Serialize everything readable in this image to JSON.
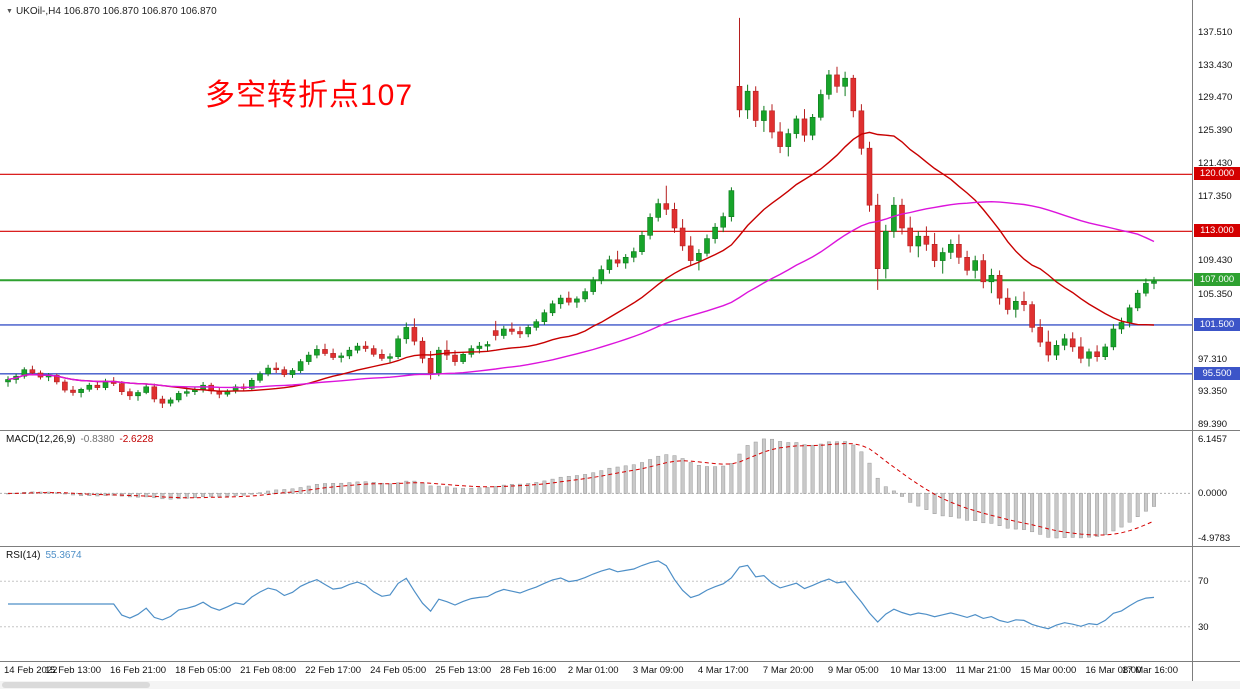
{
  "window": {
    "symbol_label": "UKOil-,H4 106.870 106.870 106.870 106.870"
  },
  "main_chart": {
    "annotation": {
      "text": "多空转折点107",
      "color": "#ff0000"
    },
    "y_ticks": [
      "137.510",
      "133.430",
      "129.470",
      "125.390",
      "121.430",
      "117.350",
      "113.390",
      "109.430",
      "105.350",
      "101.390",
      "97.310",
      "93.350",
      "89.390"
    ],
    "ylim": [
      88.6,
      141.4
    ],
    "hlines": [
      {
        "price": 120.0,
        "label": "120.000",
        "color": "#d40000",
        "width": 1.2
      },
      {
        "price": 113.0,
        "label": "113.000",
        "color": "#d40000",
        "width": 1.2
      },
      {
        "price": 107.0,
        "label": "107.000",
        "color": "#2ea130",
        "width": 2
      },
      {
        "price": 101.5,
        "label": "101.500",
        "color": "#3c55c8",
        "width": 1.4
      },
      {
        "price": 95.5,
        "label": "95.500",
        "color": "#3c55c8",
        "width": 1.4
      }
    ],
    "colors": {
      "up": "#17a42a",
      "up_stroke": "#0d7a1c",
      "down": "#e03030",
      "down_stroke": "#b51f1f",
      "ma_fast": "#c80000",
      "ma_slow": "#dc14dc"
    },
    "ma_fast_period": 20,
    "ma_slow_period": 50
  },
  "macd_panel": {
    "label": "MACD(12,26,9)",
    "value_main": "-0.8380",
    "value_signal": "-2.6228",
    "axis_ticks": [
      "6.1457",
      "0.0000",
      "-4.9783"
    ],
    "fast": 12,
    "slow": 26,
    "signal": 9,
    "colors": {
      "histogram": "#c9c9c9",
      "histogram_stroke": "#9a9a9a",
      "signal": "#d40000",
      "zero": "#b0b0b0"
    }
  },
  "rsi_panel": {
    "label": "RSI(14)",
    "value": "55.3674",
    "period": 14,
    "levels": [
      70,
      30
    ],
    "axis_ticks": [
      "70",
      "30"
    ],
    "colors": {
      "line": "#4e8fc7",
      "level": "#c6c6c6"
    }
  },
  "time_axis": {
    "labels": [
      "14 Feb 2022",
      "15 Feb 13:00",
      "16 Feb 21:00",
      "18 Feb 05:00",
      "21 Feb 08:00",
      "22 Feb 17:00",
      "24 Feb 05:00",
      "25 Feb 13:00",
      "28 Feb 16:00",
      "2 Mar 01:00",
      "3 Mar 09:00",
      "4 Mar 17:00",
      "7 Mar 20:00",
      "9 Mar 05:00",
      "10 Mar 13:00",
      "11 Mar 21:00",
      "15 Mar 00:00",
      "16 Mar 08:00",
      "17 Mar 16:00"
    ]
  },
  "chart_data": {
    "type": "candlestick",
    "symbol": "UKOil-",
    "timeframe": "H4",
    "ohlc_format": [
      "open",
      "high",
      "low",
      "close"
    ],
    "candles": [
      [
        94.5,
        95.2,
        93.9,
        94.8
      ],
      [
        94.8,
        95.5,
        94.3,
        95.2
      ],
      [
        95.2,
        96.3,
        94.9,
        96.0
      ],
      [
        96.0,
        96.5,
        95.3,
        95.6
      ],
      [
        95.6,
        95.9,
        94.8,
        95.1
      ],
      [
        95.1,
        95.6,
        94.6,
        95.3
      ],
      [
        95.3,
        95.5,
        94.2,
        94.5
      ],
      [
        94.5,
        94.8,
        93.2,
        93.5
      ],
      [
        93.5,
        94.0,
        92.8,
        93.2
      ],
      [
        93.2,
        93.8,
        92.6,
        93.6
      ],
      [
        93.6,
        94.4,
        93.3,
        94.1
      ],
      [
        94.1,
        94.6,
        93.5,
        93.8
      ],
      [
        93.8,
        94.9,
        93.5,
        94.6
      ],
      [
        94.6,
        95.1,
        94.0,
        94.3
      ],
      [
        94.3,
        94.6,
        92.9,
        93.3
      ],
      [
        93.3,
        93.7,
        92.3,
        92.8
      ],
      [
        92.8,
        93.5,
        92.2,
        93.2
      ],
      [
        93.2,
        94.2,
        93.0,
        93.9
      ],
      [
        93.9,
        94.3,
        92.0,
        92.4
      ],
      [
        92.4,
        92.8,
        91.3,
        91.9
      ],
      [
        91.9,
        92.6,
        91.5,
        92.3
      ],
      [
        92.3,
        93.4,
        92.0,
        93.1
      ],
      [
        93.1,
        93.8,
        92.7,
        93.3
      ],
      [
        93.3,
        93.9,
        92.9,
        93.6
      ],
      [
        93.6,
        94.5,
        93.2,
        94.1
      ],
      [
        94.1,
        94.4,
        93.0,
        93.4
      ],
      [
        93.4,
        93.8,
        92.5,
        93.0
      ],
      [
        93.0,
        93.6,
        92.7,
        93.4
      ],
      [
        93.4,
        94.2,
        93.1,
        93.9
      ],
      [
        93.9,
        94.3,
        93.4,
        93.7
      ],
      [
        93.7,
        95.0,
        93.5,
        94.7
      ],
      [
        94.7,
        95.8,
        94.4,
        95.5
      ],
      [
        95.5,
        96.6,
        95.2,
        96.2
      ],
      [
        96.2,
        96.9,
        95.6,
        96.0
      ],
      [
        96.0,
        96.4,
        95.1,
        95.4
      ],
      [
        95.4,
        96.2,
        95.0,
        95.9
      ],
      [
        95.9,
        97.3,
        95.6,
        97.0
      ],
      [
        97.0,
        98.2,
        96.6,
        97.8
      ],
      [
        97.8,
        99.0,
        97.4,
        98.5
      ],
      [
        98.5,
        99.2,
        97.7,
        98.0
      ],
      [
        98.0,
        98.6,
        97.2,
        97.5
      ],
      [
        97.5,
        98.1,
        96.9,
        97.7
      ],
      [
        97.7,
        98.8,
        97.3,
        98.4
      ],
      [
        98.4,
        99.3,
        98.0,
        98.9
      ],
      [
        98.9,
        99.5,
        98.2,
        98.6
      ],
      [
        98.6,
        99.0,
        97.6,
        97.9
      ],
      [
        97.9,
        98.5,
        97.1,
        97.4
      ],
      [
        97.4,
        98.0,
        96.8,
        97.6
      ],
      [
        97.6,
        100.2,
        97.3,
        99.8
      ],
      [
        99.8,
        101.8,
        99.2,
        101.2
      ],
      [
        101.2,
        102.3,
        99.0,
        99.5
      ],
      [
        99.5,
        100.0,
        96.8,
        97.4
      ],
      [
        97.4,
        98.3,
        94.8,
        95.6
      ],
      [
        95.6,
        98.8,
        95.2,
        98.4
      ],
      [
        98.4,
        99.6,
        97.2,
        97.8
      ],
      [
        97.8,
        98.4,
        96.5,
        97.0
      ],
      [
        97.0,
        98.2,
        96.7,
        97.9
      ],
      [
        97.9,
        99.0,
        97.5,
        98.6
      ],
      [
        98.6,
        99.4,
        98.0,
        98.9
      ],
      [
        98.9,
        99.5,
        98.3,
        99.1
      ],
      [
        100.8,
        102.0,
        99.6,
        100.2
      ],
      [
        100.2,
        101.4,
        99.8,
        101.0
      ],
      [
        101.0,
        101.8,
        100.3,
        100.7
      ],
      [
        100.7,
        101.3,
        99.9,
        100.4
      ],
      [
        100.4,
        101.5,
        100.0,
        101.2
      ],
      [
        101.2,
        102.2,
        100.8,
        101.9
      ],
      [
        101.9,
        103.4,
        101.5,
        103.0
      ],
      [
        103.0,
        104.5,
        102.6,
        104.1
      ],
      [
        104.1,
        105.2,
        103.5,
        104.8
      ],
      [
        104.8,
        105.6,
        103.9,
        104.3
      ],
      [
        104.3,
        105.0,
        103.6,
        104.7
      ],
      [
        104.7,
        106.0,
        104.3,
        105.6
      ],
      [
        105.6,
        107.4,
        105.2,
        107.0
      ],
      [
        107.0,
        108.8,
        106.5,
        108.3
      ],
      [
        108.3,
        110.0,
        107.8,
        109.5
      ],
      [
        109.5,
        110.6,
        108.6,
        109.1
      ],
      [
        109.1,
        110.2,
        108.4,
        109.8
      ],
      [
        109.8,
        111.0,
        109.2,
        110.5
      ],
      [
        110.5,
        113.0,
        110.1,
        112.5
      ],
      [
        112.5,
        115.2,
        112.0,
        114.7
      ],
      [
        114.7,
        117.0,
        114.2,
        116.4
      ],
      [
        116.4,
        118.6,
        115.0,
        115.7
      ],
      [
        115.7,
        116.5,
        112.8,
        113.4
      ],
      [
        113.4,
        114.5,
        110.6,
        111.2
      ],
      [
        111.2,
        112.4,
        108.8,
        109.4
      ],
      [
        109.4,
        110.8,
        108.2,
        110.3
      ],
      [
        110.3,
        112.6,
        109.9,
        112.1
      ],
      [
        112.1,
        114.0,
        111.5,
        113.5
      ],
      [
        113.5,
        115.3,
        112.9,
        114.8
      ],
      [
        114.8,
        118.4,
        114.2,
        118.0
      ],
      [
        130.8,
        139.2,
        127.0,
        127.9
      ],
      [
        127.9,
        131.0,
        126.8,
        130.2
      ],
      [
        130.2,
        130.8,
        125.8,
        126.6
      ],
      [
        126.6,
        128.4,
        125.2,
        127.8
      ],
      [
        127.8,
        128.6,
        124.4,
        125.2
      ],
      [
        125.2,
        126.4,
        122.6,
        123.4
      ],
      [
        123.4,
        125.6,
        122.2,
        125.0
      ],
      [
        125.0,
        127.2,
        124.4,
        126.8
      ],
      [
        126.8,
        128.0,
        124.0,
        124.8
      ],
      [
        124.8,
        127.4,
        124.2,
        127.0
      ],
      [
        127.0,
        130.4,
        126.6,
        129.8
      ],
      [
        129.8,
        132.8,
        129.2,
        132.2
      ],
      [
        132.2,
        133.2,
        130.0,
        130.8
      ],
      [
        130.8,
        132.6,
        129.6,
        131.8
      ],
      [
        131.8,
        132.2,
        127.0,
        127.8
      ],
      [
        127.8,
        128.6,
        122.4,
        123.2
      ],
      [
        123.2,
        124.0,
        115.4,
        116.2
      ],
      [
        116.2,
        117.6,
        105.8,
        108.4
      ],
      [
        108.4,
        113.8,
        107.2,
        113.0
      ],
      [
        113.0,
        117.2,
        112.2,
        116.2
      ],
      [
        116.2,
        117.0,
        112.6,
        113.4
      ],
      [
        113.4,
        114.8,
        110.4,
        111.2
      ],
      [
        111.2,
        113.0,
        109.8,
        112.4
      ],
      [
        112.4,
        113.6,
        110.6,
        111.4
      ],
      [
        111.4,
        112.8,
        108.6,
        109.4
      ],
      [
        109.4,
        111.0,
        107.8,
        110.4
      ],
      [
        110.4,
        112.0,
        109.6,
        111.4
      ],
      [
        111.4,
        112.6,
        109.0,
        109.8
      ],
      [
        109.8,
        110.6,
        107.6,
        108.2
      ],
      [
        108.2,
        110.0,
        107.2,
        109.4
      ],
      [
        109.4,
        110.2,
        106.0,
        106.8
      ],
      [
        106.8,
        108.4,
        105.4,
        107.6
      ],
      [
        107.6,
        108.2,
        104.0,
        104.8
      ],
      [
        104.8,
        106.0,
        102.8,
        103.4
      ],
      [
        103.4,
        105.0,
        102.4,
        104.4
      ],
      [
        104.4,
        105.6,
        103.2,
        104.0
      ],
      [
        104.0,
        104.4,
        100.6,
        101.2
      ],
      [
        101.2,
        102.2,
        98.8,
        99.4
      ],
      [
        99.4,
        100.8,
        97.0,
        97.8
      ],
      [
        97.8,
        99.6,
        97.2,
        99.0
      ],
      [
        99.0,
        100.4,
        98.4,
        99.8
      ],
      [
        99.8,
        100.6,
        98.2,
        98.8
      ],
      [
        98.8,
        100.0,
        96.8,
        97.4
      ],
      [
        97.4,
        98.6,
        96.4,
        98.2
      ],
      [
        98.2,
        99.0,
        97.0,
        97.6
      ],
      [
        97.6,
        99.2,
        97.2,
        98.8
      ],
      [
        98.8,
        101.6,
        98.4,
        101.0
      ],
      [
        101.0,
        102.4,
        100.4,
        101.8
      ],
      [
        101.8,
        104.0,
        101.2,
        103.6
      ],
      [
        103.6,
        105.8,
        103.2,
        105.4
      ],
      [
        105.4,
        107.2,
        105.0,
        106.6
      ],
      [
        106.6,
        107.4,
        105.9,
        106.87
      ]
    ]
  }
}
